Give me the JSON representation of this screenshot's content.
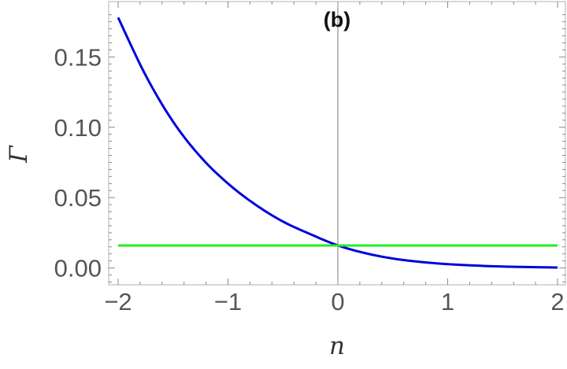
{
  "chart_data": {
    "type": "line",
    "title": "(b)",
    "xlabel": "n",
    "ylabel": "Γ",
    "xlim": [
      -2,
      2
    ],
    "ylim": [
      -0.012,
      0.186
    ],
    "x_ticks": [
      -2,
      -1,
      0,
      1,
      2
    ],
    "x_tick_labels": [
      "−2",
      "−1",
      "0",
      "1",
      "2"
    ],
    "y_ticks": [
      0.0,
      0.05,
      0.1,
      0.15
    ],
    "y_tick_labels": [
      "0.00",
      "0.05",
      "0.10",
      "0.15"
    ],
    "grid": false,
    "legend": "none",
    "series": [
      {
        "color": "#0000dd",
        "x": [
          -2.0,
          -1.75,
          -1.5,
          -1.25,
          -1.0,
          -0.75,
          -0.5,
          -0.25,
          0.0,
          0.25,
          0.5,
          0.75,
          1.0,
          1.25,
          1.5,
          1.75,
          2.0
        ],
        "y": [
          0.178,
          0.137,
          0.104,
          0.079,
          0.06,
          0.045,
          0.033,
          0.024,
          0.016,
          0.0105,
          0.0067,
          0.0043,
          0.0027,
          0.0017,
          0.001,
          0.0006,
          0.0003
        ]
      },
      {
        "color": "#22ee22",
        "x": [
          -2.0,
          2.0
        ],
        "y": [
          0.016,
          0.016
        ]
      }
    ]
  }
}
